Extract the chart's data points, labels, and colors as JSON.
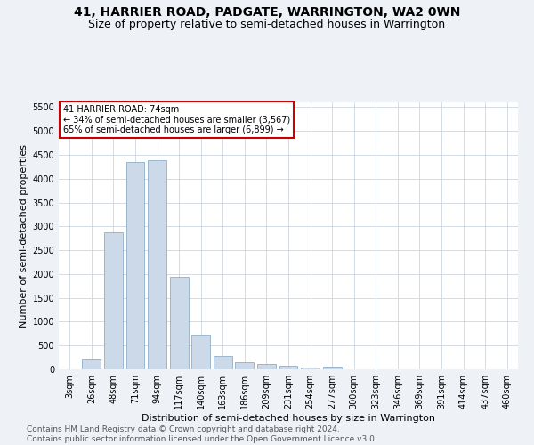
{
  "title": "41, HARRIER ROAD, PADGATE, WARRINGTON, WA2 0WN",
  "subtitle": "Size of property relative to semi-detached houses in Warrington",
  "xlabel": "Distribution of semi-detached houses by size in Warrington",
  "ylabel": "Number of semi-detached properties",
  "bar_labels": [
    "3sqm",
    "26sqm",
    "48sqm",
    "71sqm",
    "94sqm",
    "117sqm",
    "140sqm",
    "163sqm",
    "186sqm",
    "209sqm",
    "231sqm",
    "254sqm",
    "277sqm",
    "300sqm",
    "323sqm",
    "346sqm",
    "369sqm",
    "391sqm",
    "414sqm",
    "437sqm",
    "460sqm"
  ],
  "bar_values": [
    0,
    230,
    2880,
    4350,
    4380,
    1950,
    720,
    285,
    145,
    105,
    70,
    42,
    48,
    0,
    0,
    0,
    0,
    0,
    0,
    0,
    0
  ],
  "bar_color": "#ccd9e8",
  "bar_edge_color": "#7ba3c0",
  "annotation_text": "41 HARRIER ROAD: 74sqm\n← 34% of semi-detached houses are smaller (3,567)\n65% of semi-detached houses are larger (6,899) →",
  "annotation_box_color": "#ffffff",
  "annotation_box_edge": "#cc0000",
  "ylim": [
    0,
    5600
  ],
  "yticks": [
    0,
    500,
    1000,
    1500,
    2000,
    2500,
    3000,
    3500,
    4000,
    4500,
    5000,
    5500
  ],
  "footer_text": "Contains HM Land Registry data © Crown copyright and database right 2024.\nContains public sector information licensed under the Open Government Licence v3.0.",
  "background_color": "#eef2f7",
  "plot_bg_color": "#ffffff",
  "grid_color": "#c5ced8",
  "title_fontsize": 10,
  "subtitle_fontsize": 9,
  "axis_label_fontsize": 8,
  "tick_fontsize": 7,
  "footer_fontsize": 6.5
}
